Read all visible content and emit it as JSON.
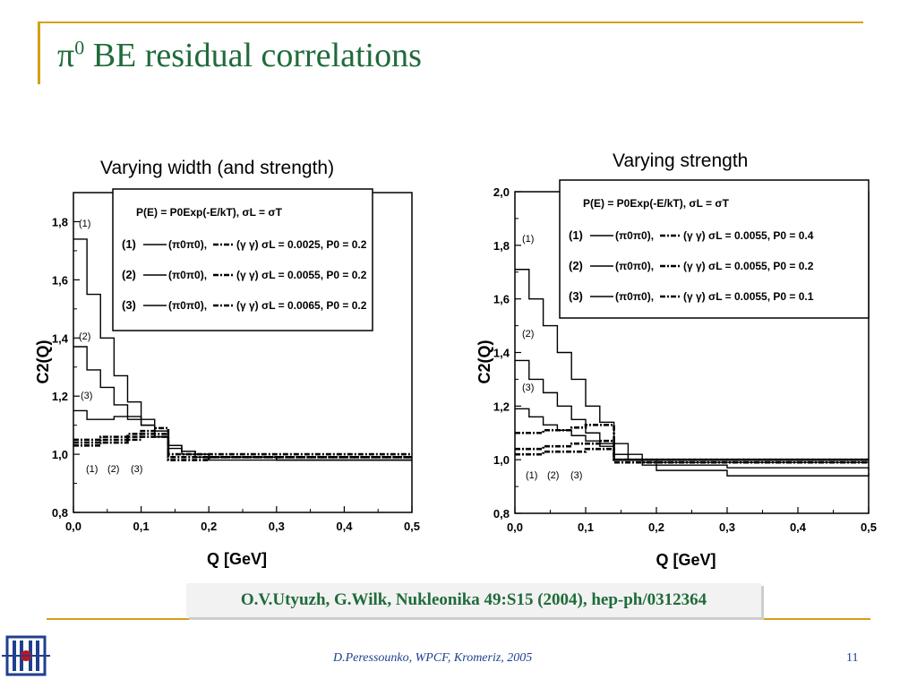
{
  "slide": {
    "title_symbol": "π",
    "title_sup": "0",
    "title_text": " BE residual correlations",
    "citation": "O.V.Utyuzh, G.Wilk, Nukleonika 49:S15 (2004), hep-ph/0312364",
    "footer": "D.Peressounko, WPCF, Kromeriz, 2005",
    "page_number": "11"
  },
  "colors": {
    "title": "#1f6b3a",
    "rule": "#d4a017",
    "footer": "#1f3f8f"
  },
  "chart_data": [
    {
      "type": "line",
      "heading": "Varying width (and strength)",
      "xlabel": "Q   [GeV]",
      "ylabel": "C2(Q)",
      "xlim": [
        0,
        0.5
      ],
      "ylim": [
        0.8,
        1.9
      ],
      "xticks": [
        "0,0",
        "0,1",
        "0,2",
        "0,3",
        "0,4",
        "0,5"
      ],
      "yticks": [
        "0,8",
        "1,0",
        "1,2",
        "1,4",
        "1,6",
        "1,8"
      ],
      "legend": {
        "placement": "top-right",
        "header": "P(E) = P0Exp(-E/kT), σL = σT",
        "items": [
          {
            "num": "(1)",
            "pi": "(π0π0),",
            "gg": "(γ γ) σL = 0.0025, P0 = 0.2"
          },
          {
            "num": "(2)",
            "pi": "(π0π0),",
            "gg": "(γ γ) σL = 0.0055, P0 = 0.2"
          },
          {
            "num": "(3)",
            "pi": "(π0π0),",
            "gg": "(γ γ) σL = 0.0065, P0 = 0.2"
          }
        ]
      },
      "top_labels": [
        "(1)",
        "(2)",
        "(3)"
      ],
      "bottom_labels": [
        "(1)",
        "(2)",
        "(3)"
      ],
      "series": [
        {
          "name": "(1) π0π0",
          "style": "solid",
          "x": [
            0,
            0.02,
            0.04,
            0.06,
            0.08,
            0.1,
            0.12,
            0.14,
            0.16,
            0.18,
            0.2,
            0.3,
            0.4,
            0.5
          ],
          "y": [
            1.74,
            1.55,
            1.4,
            1.27,
            1.18,
            1.12,
            1.08,
            1.03,
            1.01,
            1.0,
            0.99,
            0.98,
            0.98,
            0.98
          ]
        },
        {
          "name": "(2) π0π0",
          "style": "solid",
          "x": [
            0,
            0.02,
            0.04,
            0.06,
            0.08,
            0.1,
            0.12,
            0.14,
            0.16,
            0.18,
            0.2,
            0.3,
            0.4,
            0.5
          ],
          "y": [
            1.37,
            1.29,
            1.23,
            1.17,
            1.13,
            1.1,
            1.06,
            1.03,
            1.01,
            1.0,
            0.99,
            0.98,
            0.98,
            0.98
          ]
        },
        {
          "name": "(3) π0π0",
          "style": "solid",
          "x": [
            0,
            0.02,
            0.04,
            0.06,
            0.08,
            0.1,
            0.12,
            0.14,
            0.16,
            0.18,
            0.2,
            0.3,
            0.4,
            0.5
          ],
          "y": [
            1.15,
            1.12,
            1.12,
            1.13,
            1.12,
            1.1,
            1.06,
            1.02,
            1.0,
            0.99,
            0.98,
            0.98,
            0.98,
            0.98
          ]
        },
        {
          "name": "(1) γγ",
          "style": "dashdot",
          "x": [
            0,
            0.02,
            0.04,
            0.06,
            0.08,
            0.1,
            0.12,
            0.14,
            0.2,
            0.3,
            0.4,
            0.5
          ],
          "y": [
            1.05,
            1.05,
            1.06,
            1.06,
            1.07,
            1.08,
            1.09,
            1.0,
            1.0,
            1.0,
            1.0,
            1.0
          ]
        },
        {
          "name": "(2) γγ",
          "style": "dashdot",
          "x": [
            0,
            0.02,
            0.04,
            0.06,
            0.08,
            0.1,
            0.12,
            0.14,
            0.2,
            0.3,
            0.4,
            0.5
          ],
          "y": [
            1.04,
            1.04,
            1.05,
            1.05,
            1.06,
            1.07,
            1.07,
            0.99,
            0.99,
            0.99,
            0.99,
            0.99
          ]
        },
        {
          "name": "(3) γγ",
          "style": "dashdot",
          "x": [
            0,
            0.02,
            0.04,
            0.06,
            0.08,
            0.1,
            0.12,
            0.14,
            0.2,
            0.3,
            0.4,
            0.5
          ],
          "y": [
            1.03,
            1.03,
            1.04,
            1.04,
            1.05,
            1.06,
            1.06,
            0.98,
            0.99,
            0.99,
            0.99,
            0.99
          ]
        }
      ]
    },
    {
      "type": "line",
      "heading": "Varying strength",
      "xlabel": "Q   [GeV]",
      "ylabel": "C2(Q)",
      "xlim": [
        0,
        0.5
      ],
      "ylim": [
        0.8,
        2.0
      ],
      "xticks": [
        "0,0",
        "0,1",
        "0,2",
        "0,3",
        "0,4",
        "0,5"
      ],
      "yticks": [
        "0,8",
        "1,0",
        "1,2",
        "1,4",
        "1,6",
        "1,8",
        "2,0"
      ],
      "legend": {
        "placement": "top-right",
        "header": "P(E) = P0Exp(-E/kT), σL = σT",
        "items": [
          {
            "num": "(1)",
            "pi": "(π0π0),",
            "gg": "(γ γ) σL = 0.0055, P0 = 0.4"
          },
          {
            "num": "(2)",
            "pi": "(π0π0),",
            "gg": "(γ γ) σL = 0.0055, P0 = 0.2"
          },
          {
            "num": "(3)",
            "pi": "(π0π0),",
            "gg": "(γ γ) σL = 0.0055, P0 = 0.1"
          }
        ]
      },
      "top_labels": [
        "(1)",
        "(2)",
        "(3)"
      ],
      "bottom_labels": [
        "(1)",
        "(2)",
        "(3)"
      ],
      "series": [
        {
          "name": "(1) π0π0",
          "style": "solid",
          "x": [
            0,
            0.02,
            0.04,
            0.06,
            0.08,
            0.1,
            0.12,
            0.14,
            0.16,
            0.18,
            0.2,
            0.3,
            0.4,
            0.5
          ],
          "y": [
            1.71,
            1.6,
            1.5,
            1.4,
            1.3,
            1.2,
            1.14,
            1.06,
            1.02,
            1.0,
            0.99,
            0.99,
            0.99,
            0.99
          ]
        },
        {
          "name": "(2) π0π0",
          "style": "solid",
          "x": [
            0,
            0.02,
            0.04,
            0.06,
            0.08,
            0.1,
            0.12,
            0.14,
            0.16,
            0.18,
            0.2,
            0.3,
            0.4,
            0.5
          ],
          "y": [
            1.37,
            1.3,
            1.25,
            1.2,
            1.15,
            1.1,
            1.06,
            1.02,
            1.0,
            0.99,
            0.98,
            0.97,
            0.97,
            0.96
          ]
        },
        {
          "name": "(3) π0π0",
          "style": "solid",
          "x": [
            0,
            0.02,
            0.04,
            0.06,
            0.08,
            0.1,
            0.12,
            0.14,
            0.16,
            0.18,
            0.2,
            0.3,
            0.4,
            0.5
          ],
          "y": [
            1.19,
            1.16,
            1.13,
            1.11,
            1.09,
            1.07,
            1.05,
            1.02,
            1.0,
            0.98,
            0.96,
            0.94,
            0.94,
            0.95
          ]
        },
        {
          "name": "(1) γγ",
          "style": "dashdot",
          "x": [
            0,
            0.02,
            0.04,
            0.06,
            0.08,
            0.1,
            0.12,
            0.14,
            0.2,
            0.3,
            0.4,
            0.5
          ],
          "y": [
            1.1,
            1.1,
            1.11,
            1.11,
            1.12,
            1.13,
            1.13,
            1.0,
            1.0,
            1.0,
            1.0,
            1.0
          ]
        },
        {
          "name": "(2) γγ",
          "style": "dashdot",
          "x": [
            0,
            0.02,
            0.04,
            0.06,
            0.08,
            0.1,
            0.12,
            0.14,
            0.2,
            0.3,
            0.4,
            0.5
          ],
          "y": [
            1.04,
            1.04,
            1.05,
            1.05,
            1.06,
            1.06,
            1.07,
            1.0,
            1.0,
            1.0,
            1.0,
            1.0
          ]
        },
        {
          "name": "(3) γγ",
          "style": "dashdot",
          "x": [
            0,
            0.02,
            0.04,
            0.06,
            0.08,
            0.1,
            0.12,
            0.14,
            0.2,
            0.3,
            0.4,
            0.5
          ],
          "y": [
            1.02,
            1.02,
            1.03,
            1.03,
            1.03,
            1.04,
            1.04,
            0.99,
            0.99,
            0.99,
            0.99,
            0.99
          ]
        }
      ]
    }
  ]
}
